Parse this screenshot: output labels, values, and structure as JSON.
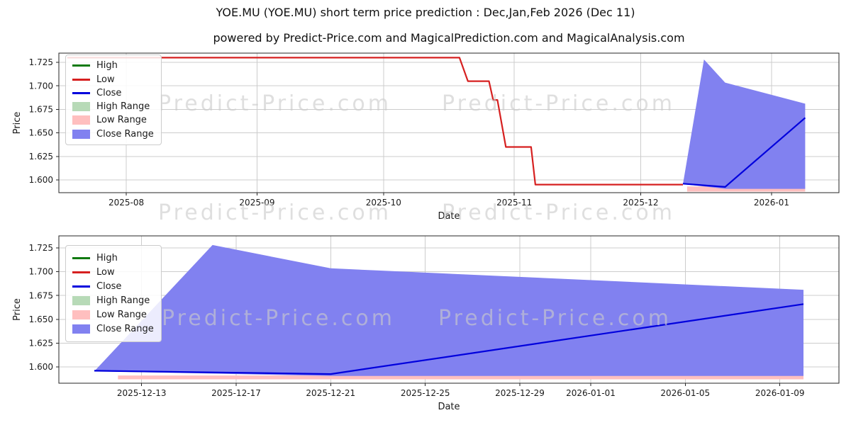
{
  "page": {
    "title": "YOE.MU (YOE.MU) short term price prediction : Dec,Jan,Feb 2026 (Dec 11)",
    "subtitle": "powered by Predict-Price.com and MagicalPrediction.com and MagicalAnalysis.com"
  },
  "watermark": {
    "text": "Predict-Price.com"
  },
  "colors": {
    "high_line": "#107a10",
    "low_line": "#d62020",
    "close_line": "#0000dd",
    "high_range": "#b7dab7",
    "low_range": "#ffbfbf",
    "close_range": "#8181f0",
    "grid": "#cccccc",
    "spine": "#262626"
  },
  "legend": {
    "items": [
      {
        "label": "High",
        "type": "line",
        "color": "#107a10"
      },
      {
        "label": "Low",
        "type": "line",
        "color": "#d62020"
      },
      {
        "label": "Close",
        "type": "line",
        "color": "#0000dd"
      },
      {
        "label": "High Range",
        "type": "patch",
        "color": "#b7dab7"
      },
      {
        "label": "Low Range",
        "type": "patch",
        "color": "#ffbfbf"
      },
      {
        "label": "Close Range",
        "type": "patch",
        "color": "#8181f0"
      }
    ]
  },
  "chart_data": [
    {
      "name": "price-history-with-prediction",
      "type": "line+area",
      "xlabel": "Date",
      "ylabel": "Price",
      "grid": true,
      "legend_position": "upper left",
      "xlim": [
        "2025-07-16",
        "2026-01-17"
      ],
      "ylim": [
        1.5864,
        1.7348
      ],
      "xticks": [
        {
          "label": "2025-08",
          "date": "2025-08-01"
        },
        {
          "label": "2025-09",
          "date": "2025-09-01"
        },
        {
          "label": "2025-10",
          "date": "2025-10-01"
        },
        {
          "label": "2025-11",
          "date": "2025-11-01"
        },
        {
          "label": "2025-12",
          "date": "2025-12-01"
        },
        {
          "label": "2026-01",
          "date": "2026-01-01"
        }
      ],
      "yticks": [
        {
          "label": "1.600",
          "value": 1.6
        },
        {
          "label": "1.625",
          "value": 1.625
        },
        {
          "label": "1.650",
          "value": 1.65
        },
        {
          "label": "1.675",
          "value": 1.675
        },
        {
          "label": "1.700",
          "value": 1.7
        },
        {
          "label": "1.725",
          "value": 1.725
        }
      ],
      "bands": [
        {
          "name": "Low Range",
          "color": "#ffbfbf",
          "top": [
            [
              "2025-12-12",
              1.593
            ],
            [
              "2026-01-09",
              1.593
            ]
          ],
          "bottom": [
            [
              "2026-01-09",
              1.5875
            ],
            [
              "2025-12-12",
              1.5875
            ]
          ]
        },
        {
          "name": "Close Range",
          "color": "#8181f0",
          "top": [
            [
              "2025-12-11",
              1.5955
            ],
            [
              "2025-12-16",
              1.728
            ],
            [
              "2025-12-21",
              1.7035
            ],
            [
              "2026-01-09",
              1.681
            ]
          ],
          "bottom": [
            [
              "2026-01-09",
              1.5905
            ],
            [
              "2025-12-21",
              1.5905
            ],
            [
              "2025-12-11",
              1.5955
            ]
          ]
        }
      ],
      "series": [
        {
          "name": "Low",
          "color": "#d62020",
          "points": [
            [
              "2025-07-18",
              1.73
            ],
            [
              "2025-10-19",
              1.73
            ],
            [
              "2025-10-21",
              1.705
            ],
            [
              "2025-10-26",
              1.705
            ],
            [
              "2025-10-27",
              1.685
            ],
            [
              "2025-10-28",
              1.685
            ],
            [
              "2025-10-30",
              1.635
            ],
            [
              "2025-11-05",
              1.635
            ],
            [
              "2025-11-06",
              1.595
            ],
            [
              "2025-12-11",
              1.595
            ]
          ]
        },
        {
          "name": "Close",
          "color": "#0000dd",
          "points": [
            [
              "2025-12-11",
              1.596
            ],
            [
              "2025-12-21",
              1.5925
            ],
            [
              "2026-01-09",
              1.666
            ]
          ]
        }
      ]
    },
    {
      "name": "prediction-detail",
      "type": "line+area",
      "xlabel": "Date",
      "ylabel": "Price",
      "grid": true,
      "legend_position": "upper left",
      "xlim": [
        "2025-12-09T12:00:00",
        "2026-01-11T12:00:00"
      ],
      "ylim": [
        1.5829,
        1.7376
      ],
      "xticks": [
        {
          "label": "2025-12-13",
          "date": "2025-12-13"
        },
        {
          "label": "2025-12-17",
          "date": "2025-12-17"
        },
        {
          "label": "2025-12-21",
          "date": "2025-12-21"
        },
        {
          "label": "2025-12-25",
          "date": "2025-12-25"
        },
        {
          "label": "2025-12-29",
          "date": "2025-12-29"
        },
        {
          "label": "2026-01-01",
          "date": "2026-01-01"
        },
        {
          "label": "2026-01-05",
          "date": "2026-01-05"
        },
        {
          "label": "2026-01-09",
          "date": "2026-01-09"
        }
      ],
      "yticks": [
        {
          "label": "1.600",
          "value": 1.6
        },
        {
          "label": "1.625",
          "value": 1.625
        },
        {
          "label": "1.650",
          "value": 1.65
        },
        {
          "label": "1.675",
          "value": 1.675
        },
        {
          "label": "1.700",
          "value": 1.7
        },
        {
          "label": "1.725",
          "value": 1.725
        }
      ],
      "bands": [
        {
          "name": "Low Range",
          "color": "#ffbfbf",
          "top": [
            [
              "2025-12-12",
              1.591
            ],
            [
              "2026-01-10",
              1.591
            ]
          ],
          "bottom": [
            [
              "2026-01-10",
              1.587
            ],
            [
              "2025-12-12",
              1.587
            ]
          ]
        },
        {
          "name": "Close Range",
          "color": "#8181f0",
          "top": [
            [
              "2025-12-11",
              1.5955
            ],
            [
              "2025-12-16",
              1.728
            ],
            [
              "2025-12-21",
              1.7035
            ],
            [
              "2026-01-10",
              1.681
            ]
          ],
          "bottom": [
            [
              "2026-01-10",
              1.5905
            ],
            [
              "2025-12-21",
              1.5905
            ],
            [
              "2025-12-11",
              1.5955
            ]
          ]
        }
      ],
      "series": [
        {
          "name": "Close",
          "color": "#0000dd",
          "points": [
            [
              "2025-12-11",
              1.596
            ],
            [
              "2025-12-21",
              1.5925
            ],
            [
              "2026-01-10",
              1.666
            ]
          ]
        }
      ]
    }
  ]
}
